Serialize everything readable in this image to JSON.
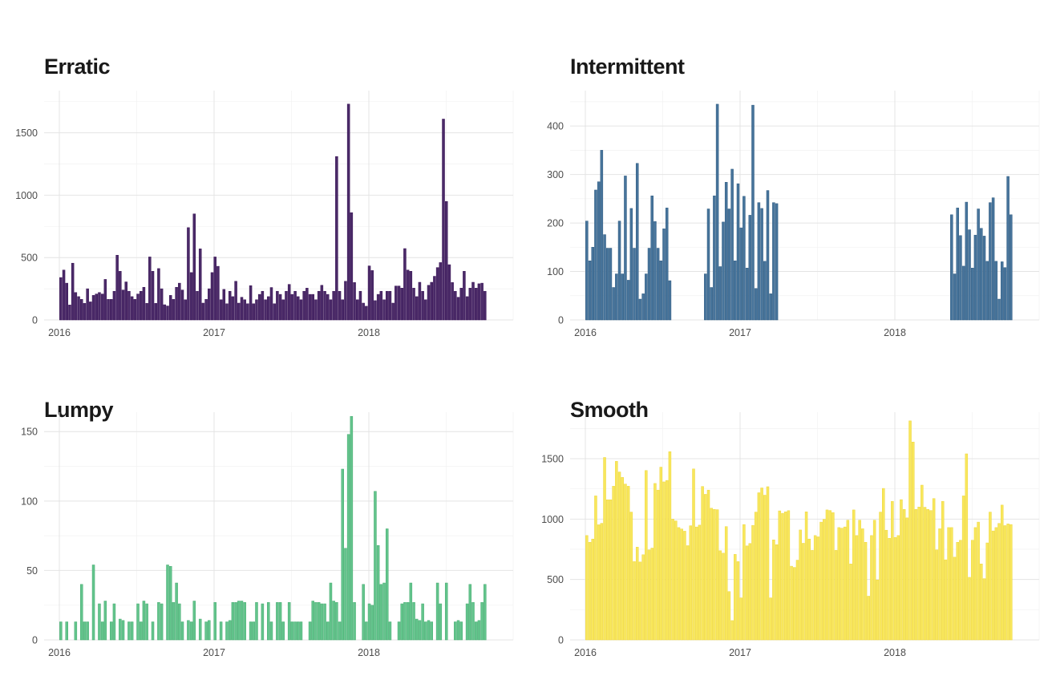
{
  "page": {
    "background": "#ffffff",
    "tick_label_color": "#4d4d4d",
    "title_color": "#191919",
    "grid_major_color": "#e4e4e4",
    "grid_minor_color": "#f2f2f2"
  },
  "chart_data": [
    {
      "type": "bar",
      "title": "Erratic",
      "x_frequency": "weekly",
      "x_start_year": 2016,
      "x_ticks": [
        2016,
        2017,
        2018
      ],
      "x_tick_labels": [
        "2016",
        "2017",
        "2018"
      ],
      "y_ticks": [
        0,
        500,
        1000,
        1500
      ],
      "y_minor": [
        250,
        750,
        1250,
        1750
      ],
      "ylim": [
        0,
        1838
      ],
      "grid": true,
      "legend": false,
      "bar_color": "#4a2a68",
      "bar_edge": "#371053",
      "values": [
        340,
        400,
        295,
        120,
        455,
        220,
        187,
        165,
        133,
        250,
        145,
        197,
        208,
        220,
        208,
        325,
        165,
        165,
        230,
        519,
        390,
        240,
        305,
        230,
        187,
        165,
        208,
        230,
        262,
        133,
        505,
        390,
        133,
        412,
        250,
        122,
        112,
        197,
        165,
        262,
        295,
        240,
        162,
        740,
        380,
        850,
        230,
        570,
        135,
        165,
        250,
        380,
        505,
        430,
        162,
        245,
        130,
        230,
        187,
        310,
        135,
        182,
        162,
        130,
        275,
        130,
        162,
        205,
        230,
        162,
        187,
        260,
        130,
        230,
        205,
        162,
        230,
        285,
        205,
        230,
        187,
        162,
        230,
        255,
        205,
        205,
        162,
        230,
        278,
        230,
        205,
        162,
        230,
        1310,
        230,
        162,
        310,
        1730,
        860,
        300,
        162,
        230,
        135,
        110,
        433,
        396,
        155,
        205,
        230,
        162,
        230,
        230,
        135,
        272,
        272,
        255,
        572,
        400,
        390,
        255,
        187,
        302,
        230,
        162,
        278,
        302,
        350,
        420,
        460,
        1610,
        950,
        443,
        300,
        230,
        182,
        255,
        390,
        187,
        255,
        302,
        255,
        290,
        295,
        230
      ]
    },
    {
      "type": "bar",
      "title": "Intermittent",
      "x_frequency": "weekly",
      "x_start_year": 2016,
      "x_ticks": [
        2016,
        2017,
        2018
      ],
      "x_tick_labels": [
        "2016",
        "2017",
        "2018"
      ],
      "y_ticks": [
        0,
        100,
        200,
        300,
        400
      ],
      "y_minor": [
        50,
        150,
        250,
        350,
        450
      ],
      "ylim": [
        0,
        473
      ],
      "grid": true,
      "legend": false,
      "bar_color": "#47749b",
      "bar_edge": "#2e5a80",
      "values": [
        204,
        122,
        150,
        268,
        285,
        350,
        176,
        148,
        148,
        67,
        95,
        204,
        95,
        297,
        82,
        230,
        148,
        323,
        43,
        54,
        95,
        148,
        256,
        203,
        148,
        122,
        188,
        231,
        81,
        0,
        0,
        0,
        0,
        0,
        0,
        0,
        0,
        0,
        0,
        0,
        95,
        229,
        67,
        256,
        445,
        110,
        202,
        284,
        229,
        311,
        122,
        281,
        190,
        255,
        107,
        216,
        443,
        65,
        242,
        230,
        121,
        267,
        54,
        242,
        240,
        0,
        0,
        0,
        0,
        0,
        0,
        0,
        0,
        0,
        0,
        0,
        0,
        0,
        0,
        0,
        0,
        0,
        0,
        0,
        0,
        0,
        0,
        0,
        0,
        0,
        0,
        0,
        0,
        0,
        0,
        0,
        0,
        0,
        0,
        0,
        0,
        0,
        0,
        0,
        0,
        0,
        0,
        0,
        0,
        0,
        0,
        0,
        0,
        0,
        0,
        0,
        0,
        0,
        0,
        0,
        0,
        0,
        0,
        217,
        95,
        231,
        174,
        111,
        243,
        186,
        107,
        175,
        229,
        189,
        173,
        121,
        242,
        252,
        121,
        43,
        120,
        108,
        296,
        217
      ]
    },
    {
      "type": "bar",
      "title": "Lumpy",
      "x_frequency": "weekly",
      "x_start_year": 2016,
      "x_ticks": [
        2016,
        2017,
        2018
      ],
      "x_tick_labels": [
        "2016",
        "2017",
        "2018"
      ],
      "y_ticks": [
        0,
        50,
        100,
        150
      ],
      "y_minor": [
        25,
        75,
        125
      ],
      "ylim": [
        0,
        164
      ],
      "grid": true,
      "legend": false,
      "bar_color": "#63c48c",
      "bar_edge": "#46ab71",
      "values": [
        13,
        0,
        13,
        0,
        0,
        13,
        0,
        40,
        13,
        13,
        0,
        54,
        0,
        26,
        13,
        28,
        0,
        13,
        26,
        0,
        15,
        14,
        0,
        13,
        13,
        0,
        26,
        13,
        28,
        26,
        0,
        13,
        0,
        27,
        26,
        0,
        54,
        53,
        27,
        41,
        26,
        13,
        0,
        14,
        13,
        28,
        0,
        15,
        0,
        13,
        14,
        0,
        27,
        0,
        13,
        0,
        13,
        14,
        27,
        27,
        28,
        28,
        27,
        0,
        13,
        13,
        27,
        0,
        26,
        0,
        27,
        13,
        0,
        27,
        27,
        13,
        0,
        27,
        13,
        13,
        13,
        13,
        0,
        0,
        13,
        28,
        27,
        27,
        26,
        26,
        13,
        41,
        28,
        27,
        13,
        123,
        66,
        148,
        161,
        27,
        0,
        0,
        40,
        13,
        26,
        25,
        107,
        68,
        40,
        41,
        80,
        13,
        0,
        0,
        13,
        26,
        27,
        27,
        41,
        27,
        15,
        14,
        26,
        13,
        14,
        13,
        0,
        41,
        26,
        0,
        41,
        0,
        0,
        13,
        14,
        13,
        0,
        26,
        40,
        27,
        13,
        14,
        27,
        40
      ]
    },
    {
      "type": "bar",
      "title": "Smooth",
      "x_frequency": "weekly",
      "x_start_year": 2016,
      "x_ticks": [
        2016,
        2017,
        2018
      ],
      "x_tick_labels": [
        "2016",
        "2017",
        "2018"
      ],
      "y_ticks": [
        0,
        500,
        1000,
        1500
      ],
      "y_minor": [
        250,
        750,
        1250,
        1750
      ],
      "ylim": [
        0,
        1885
      ],
      "grid": true,
      "legend": false,
      "bar_color": "#f8e75c",
      "bar_edge": "#eed63e",
      "values": [
        864,
        808,
        835,
        1192,
        953,
        965,
        1510,
        1160,
        1160,
        1272,
        1478,
        1390,
        1345,
        1290,
        1272,
        1058,
        648,
        768,
        645,
        705,
        1402,
        745,
        760,
        1295,
        1240,
        1430,
        1308,
        1320,
        1558,
        1000,
        985,
        930,
        918,
        900,
        780,
        945,
        1415,
        935,
        950,
        1270,
        1205,
        1240,
        1090,
        1080,
        1078,
        738,
        718,
        938,
        400,
        160,
        708,
        648,
        348,
        955,
        778,
        798,
        948,
        1058,
        1218,
        1258,
        1198,
        1268,
        348,
        828,
        788,
        1068,
        1048,
        1060,
        1070,
        610,
        600,
        660,
        910,
        800,
        1060,
        835,
        741,
        864,
        853,
        975,
        998,
        1076,
        1071,
        1054,
        741,
        930,
        925,
        935,
        991,
        629,
        1076,
        864,
        991,
        920,
        808,
        362,
        864,
        991,
        496,
        1058,
        1254,
        908,
        841,
        1147,
        848,
        864,
        1161,
        1080,
        1010,
        1813,
        1638,
        1080,
        1100,
        1281,
        1098,
        1080,
        1071,
        1170,
        745,
        920,
        1147,
        663,
        930,
        930,
        685,
        808,
        825,
        1192,
        1540,
        518,
        825,
        930,
        975,
        629,
        507,
        803,
        1058,
        902,
        930,
        964,
        1116,
        946,
        960,
        955
      ]
    }
  ]
}
